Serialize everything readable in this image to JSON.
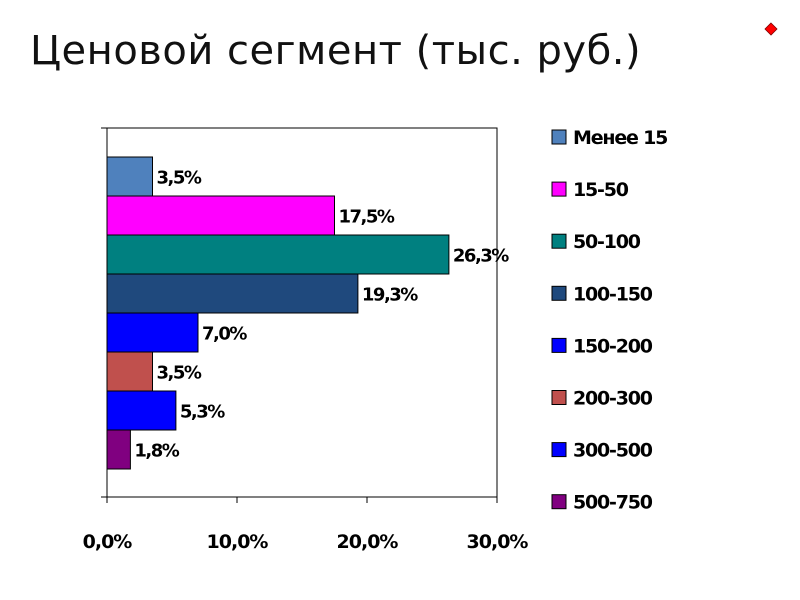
{
  "slide": {
    "title": "Ценовой сегмент (тыс. руб.)"
  },
  "icons": {
    "corner": "red-diamond-icon"
  },
  "colors": {
    "corner_mark": "#ff0000"
  },
  "chart_data": {
    "type": "bar",
    "orientation": "horizontal",
    "title": "Ценовой сегмент (тыс. руб.)",
    "xlabel": "",
    "ylabel": "",
    "xlim": [
      0,
      30
    ],
    "x_ticks": [
      0,
      10,
      20,
      30
    ],
    "x_tick_labels": [
      "0,0%",
      "10,0%",
      "20,0%",
      "30,0%"
    ],
    "grid": false,
    "legend_position": "right",
    "series": [
      {
        "name": "Менее 15",
        "value": 3.5,
        "label": "3,5%",
        "color": "#4f81bd"
      },
      {
        "name": "15-50",
        "value": 17.5,
        "label": "17,5%",
        "color": "#ff00ff"
      },
      {
        "name": "50-100",
        "value": 26.3,
        "label": "26,3%",
        "color": "#008080"
      },
      {
        "name": "100-150",
        "value": 19.3,
        "label": "19,3%",
        "color": "#1f497d"
      },
      {
        "name": "150-200",
        "value": 7.0,
        "label": "7,0%",
        "color": "#0000ff"
      },
      {
        "name": "200-300",
        "value": 3.5,
        "label": "3,5%",
        "color": "#c0504d"
      },
      {
        "name": "300-500",
        "value": 5.3,
        "label": "5,3%",
        "color": "#0000ff"
      },
      {
        "name": "500-750",
        "value": 1.8,
        "label": "1,8%",
        "color": "#800080"
      }
    ]
  }
}
